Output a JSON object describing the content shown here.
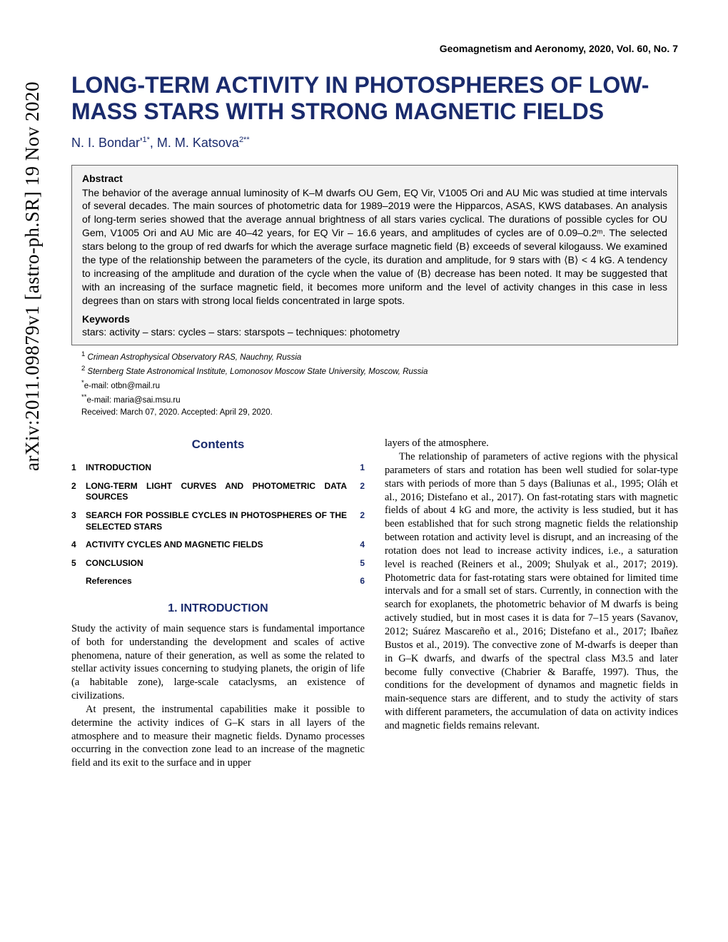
{
  "arxiv": "arXiv:2011.09879v1  [astro-ph.SR]  19 Nov 2020",
  "journal": "Geomagnetism and Aeronomy, 2020, Vol. 60, No. 7",
  "title": "LONG-TERM ACTIVITY IN PHOTOSPHERES OF LOW-MASS STARS WITH STRONG MAGNETIC FIELDS",
  "author1": "N. I. Bondar'",
  "author1sup": "1*",
  "author2": "M. M. Katsova",
  "author2sup": "2**",
  "abstract_heading": "Abstract",
  "abstract": "The behavior of the average annual luminosity of K–M dwarfs OU Gem, EQ Vir, V1005 Ori and AU Mic was studied at time intervals of several decades. The main sources of photometric data for 1989–2019 were the Hipparcos, ASAS, KWS databases. An analysis of long-term series showed that the average annual brightness of all stars varies cyclical. The durations of possible cycles for OU Gem, V1005 Ori and AU Mic are 40–42 years, for EQ Vir – 16.6 years, and amplitudes of cycles are of 0.09–0.2ᵐ. The selected stars belong to the group of red dwarfs for which the average surface magnetic field ⟨B⟩ exceeds of several kilogauss. We examined the type of the relationship between the parameters of the cycle, its duration and amplitude, for 9 stars with ⟨B⟩ < 4 kG. A tendency to increasing of the amplitude and duration of the cycle when the value of ⟨B⟩ decrease has been noted. It may be suggested that with an increasing of the surface magnetic field, it becomes more uniform and the level of activity changes in this case in less degrees than on stars with strong local fields concentrated in large spots.",
  "keywords_heading": "Keywords",
  "keywords": "stars: activity – stars: cycles – stars: starspots – techniques: photometry",
  "aff1_sup": "1",
  "aff1": "Crimean Astrophysical Observatory RAS, Nauchny, Russia",
  "aff2_sup": "2",
  "aff2": "Sternberg State Astronomical Institute, Lomonosov Moscow State University, Moscow, Russia",
  "email1_sup": "*",
  "email1": "e-mail: otbn@mail.ru",
  "email2_sup": "**",
  "email2": "e-mail: maria@sai.msu.ru",
  "received": "Received: March 07, 2020. Accepted: April 29, 2020.",
  "contents_heading": "Contents",
  "toc": [
    {
      "num": "1",
      "label": "INTRODUCTION",
      "page": "1"
    },
    {
      "num": "2",
      "label": "LONG-TERM LIGHT CURVES AND PHOTOMETRIC DATA SOURCES",
      "page": "2"
    },
    {
      "num": "3",
      "label": "SEARCH FOR POSSIBLE CYCLES IN PHOTOSPHERES OF THE SELECTED STARS",
      "page": "2"
    },
    {
      "num": "4",
      "label": "ACTIVITY CYCLES AND MAGNETIC FIELDS",
      "page": "4"
    },
    {
      "num": "5",
      "label": "CONCLUSION",
      "page": "5"
    },
    {
      "num": "",
      "label": "References",
      "page": "6"
    }
  ],
  "section1_heading": "1. INTRODUCTION",
  "col1_p1": "Study the activity of main sequence stars is fundamental importance of both for understanding the development and scales of active phenomena, nature of their generation, as well as some the related to stellar activity issues concerning to studying planets, the origin of life (a habitable zone), large-scale cataclysms, an existence of civilizations.",
  "col1_p2": "At present, the instrumental capabilities make it possible to determine the activity indices of G–K stars in all layers of the atmosphere and to measure their magnetic fields. Dynamo processes occurring in the convection zone lead to an increase of the magnetic field and its exit to the surface and in upper",
  "col2_p1": "layers of the atmosphere.",
  "col2_p2": "The relationship of parameters of active regions with the physical parameters of stars and rotation has been well studied for solar-type stars with periods of more than 5 days (Baliunas et al., 1995; Oláh et al., 2016; Distefano et al., 2017). On fast-rotating stars with magnetic fields of about 4 kG and more, the activity is less studied, but it has been established that for such strong magnetic fields the relationship between rotation and activity level is disrupt, and an increasing of the rotation does not lead to increase activity indices, i.e., a saturation level is reached (Reiners et al., 2009; Shulyak et al., 2017; 2019). Photometric data for fast-rotating stars were obtained for limited time intervals and for a small set of stars. Currently, in connection with the search for exoplanets, the photometric behavior of M dwarfs is being actively studied, but in most cases it is data for 7–15 years (Savanov, 2012; Suárez Mascareño et al., 2016; Distefano et al., 2017; Ibañez Bustos et al., 2019). The convective zone of M-dwarfs is deeper than in G–K dwarfs, and dwarfs of the spectral class M3.5 and later become fully convective (Chabrier & Baraffe, 1997). Thus, the conditions for the development of dynamos and magnetic fields in main-sequence stars are different, and to study the activity of stars with different parameters, the accumulation of data on activity indices and magnetic fields remains relevant.",
  "colors": {
    "title_color": "#1a2b6d",
    "text_color": "#000000",
    "box_bg": "#f2f2f2",
    "box_border": "#666666"
  }
}
